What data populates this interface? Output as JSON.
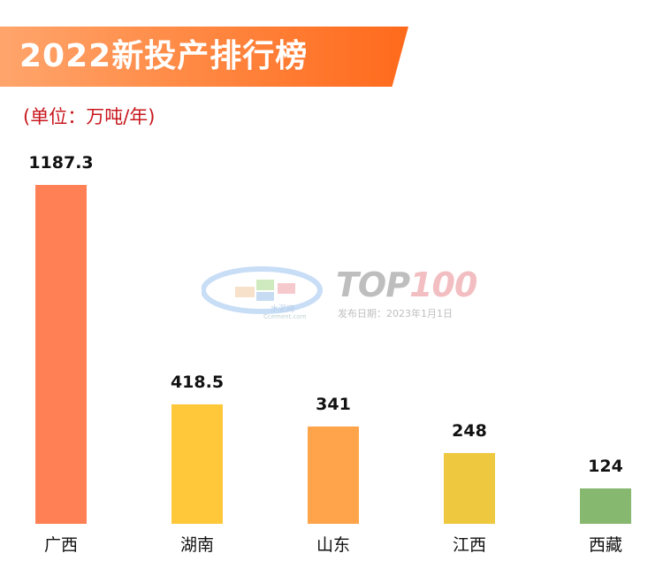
{
  "header": {
    "title": "2022新投产排行榜",
    "unit_label": "(单位：万吨/年)"
  },
  "watermark": {
    "brand": "TOP",
    "brand_hl": "100",
    "date_text": "发布日期：2023年1月1日",
    "site_cn": "水泥网",
    "site_en": "Ccement.com"
  },
  "chart_data": {
    "type": "bar",
    "title": "2022新投产排行榜",
    "ylabel": "(单位：万吨/年)",
    "categories": [
      "广西",
      "湖南",
      "山东",
      "江西",
      "西藏"
    ],
    "values": [
      1187.3,
      418.5,
      341,
      248,
      124
    ],
    "value_labels": [
      "1187.3",
      "418.5",
      "341",
      "248",
      "124"
    ],
    "colors": [
      "#ff8055",
      "#ffc73a",
      "#ffa44a",
      "#eec940",
      "#87b870"
    ],
    "ylim": [
      0,
      1187.3
    ],
    "grid": false,
    "legend": "none"
  }
}
